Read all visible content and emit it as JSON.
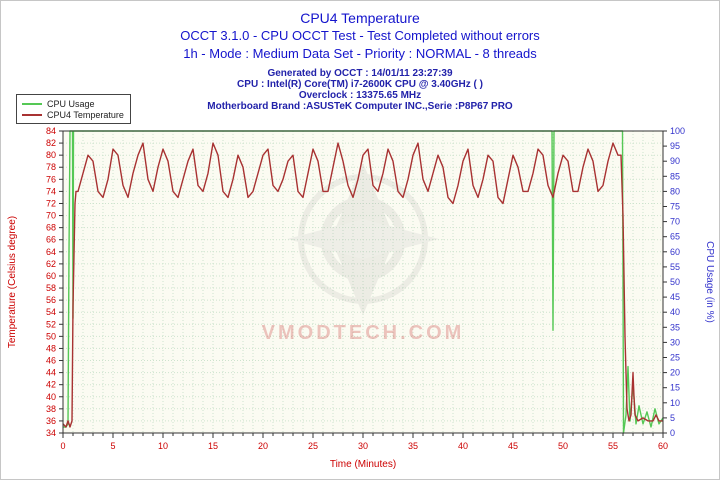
{
  "header": {
    "subtitle1": "OCCT 3.1.0 - CPU OCCT Test - Test Completed without errors",
    "subtitle2": "1h - Mode : Medium Data Set - Priority : NORMAL - 8 threads",
    "info": [
      "Generated by OCCT : 14/01/11 23:27:39",
      "CPU : Intel(R) Core(TM) i7-2600K CPU @ 3.40GHz (  )",
      "Overclock : 13375.65 MHz",
      "Motherboard Brand :ASUSTeK Computer INC.,Serie :P8P67 PRO"
    ]
  },
  "chart_data": {
    "type": "line",
    "title": "CPU4 Temperature",
    "xlabel": "Time (Minutes)",
    "ylabel_left": "Temperature (Celsius degree)",
    "ylabel_right": "CPU Usage (in %)",
    "x_range": [
      0,
      60
    ],
    "x_ticks": [
      0,
      5,
      10,
      15,
      20,
      25,
      30,
      35,
      40,
      45,
      50,
      55,
      60
    ],
    "y_left_range": [
      34,
      84
    ],
    "y_left_ticks": [
      34,
      36,
      38,
      40,
      42,
      44,
      46,
      48,
      50,
      52,
      54,
      56,
      58,
      60,
      62,
      64,
      66,
      68,
      70,
      72,
      74,
      76,
      78,
      80,
      82,
      84
    ],
    "y_right_range": [
      0,
      100
    ],
    "y_right_ticks": [
      0,
      5,
      10,
      15,
      20,
      25,
      30,
      35,
      40,
      45,
      50,
      55,
      60,
      65,
      70,
      75,
      80,
      85,
      90,
      95,
      100
    ],
    "grid": true,
    "legend_position": "top-left",
    "watermark": "VMODTECH.COM",
    "colors": {
      "title": "#1414cc",
      "info": "#2222aa",
      "left_axis": "#cc0000",
      "right_axis": "#3333cc",
      "grid": "#cde3cd",
      "plot_bg": "#fbfbf2",
      "watermark_text": "#cc4444"
    },
    "series": [
      {
        "name": "CPU Usage",
        "axis": "right",
        "color": "#55c855",
        "points": [
          [
            0,
            2
          ],
          [
            0.3,
            2
          ],
          [
            0.5,
            3
          ],
          [
            0.6,
            60
          ],
          [
            0.7,
            100
          ],
          [
            0.95,
            100
          ],
          [
            1,
            38
          ],
          [
            1.05,
            100
          ],
          [
            5,
            100
          ],
          [
            10,
            100
          ],
          [
            15,
            100
          ],
          [
            20,
            100
          ],
          [
            25,
            100
          ],
          [
            30,
            100
          ],
          [
            35,
            100
          ],
          [
            40,
            100
          ],
          [
            45,
            100
          ],
          [
            48.9,
            100
          ],
          [
            49,
            34
          ],
          [
            49.1,
            100
          ],
          [
            52,
            100
          ],
          [
            55.95,
            100
          ],
          [
            56.05,
            0
          ],
          [
            56.3,
            6
          ],
          [
            56.5,
            22
          ],
          [
            56.7,
            4
          ],
          [
            57,
            16
          ],
          [
            57.3,
            3
          ],
          [
            57.6,
            9
          ],
          [
            58,
            3
          ],
          [
            58.4,
            7
          ],
          [
            58.8,
            2
          ],
          [
            59.2,
            8
          ],
          [
            59.6,
            3
          ],
          [
            60,
            5
          ]
        ]
      },
      {
        "name": "CPU4 Temperature",
        "axis": "left",
        "color": "#a83232",
        "points": [
          [
            0,
            35.5
          ],
          [
            0.3,
            35
          ],
          [
            0.5,
            36
          ],
          [
            0.7,
            35
          ],
          [
            0.9,
            36
          ],
          [
            1,
            55
          ],
          [
            1.2,
            72
          ],
          [
            1.3,
            74
          ],
          [
            1.5,
            74
          ],
          [
            2,
            77
          ],
          [
            2.5,
            80
          ],
          [
            3,
            79
          ],
          [
            3.5,
            74
          ],
          [
            4,
            73
          ],
          [
            4.5,
            76
          ],
          [
            5,
            81
          ],
          [
            5.5,
            80
          ],
          [
            6,
            75
          ],
          [
            6.5,
            73
          ],
          [
            7,
            77
          ],
          [
            7.5,
            80
          ],
          [
            8,
            82
          ],
          [
            8.5,
            76
          ],
          [
            9,
            74
          ],
          [
            9.5,
            78
          ],
          [
            10,
            81
          ],
          [
            10.5,
            79
          ],
          [
            11,
            74
          ],
          [
            11.5,
            73
          ],
          [
            12,
            76
          ],
          [
            12.5,
            79
          ],
          [
            13,
            81
          ],
          [
            13.5,
            75
          ],
          [
            14,
            74
          ],
          [
            14.5,
            77
          ],
          [
            15,
            82
          ],
          [
            15.5,
            80
          ],
          [
            16,
            74
          ],
          [
            16.5,
            73
          ],
          [
            17,
            76
          ],
          [
            17.5,
            80
          ],
          [
            18,
            78
          ],
          [
            18.5,
            73
          ],
          [
            19,
            74
          ],
          [
            19.5,
            77
          ],
          [
            20,
            80
          ],
          [
            20.5,
            81
          ],
          [
            21,
            75
          ],
          [
            21.5,
            74
          ],
          [
            22,
            76
          ],
          [
            22.5,
            79
          ],
          [
            23,
            80
          ],
          [
            23.5,
            74
          ],
          [
            24,
            73
          ],
          [
            24.5,
            77
          ],
          [
            25,
            81
          ],
          [
            25.5,
            79
          ],
          [
            26,
            74
          ],
          [
            26.5,
            74
          ],
          [
            27,
            78
          ],
          [
            27.5,
            82
          ],
          [
            28,
            79
          ],
          [
            28.5,
            75
          ],
          [
            29,
            73
          ],
          [
            29.5,
            76
          ],
          [
            30,
            80
          ],
          [
            30.5,
            81
          ],
          [
            31,
            75
          ],
          [
            31.5,
            74
          ],
          [
            32,
            77
          ],
          [
            32.5,
            81
          ],
          [
            33,
            79
          ],
          [
            33.5,
            74
          ],
          [
            34,
            73
          ],
          [
            34.5,
            76
          ],
          [
            35,
            80
          ],
          [
            35.5,
            82
          ],
          [
            36,
            76
          ],
          [
            36.5,
            74
          ],
          [
            37,
            77
          ],
          [
            37.5,
            80
          ],
          [
            38,
            78
          ],
          [
            38.5,
            73
          ],
          [
            39,
            72
          ],
          [
            39.5,
            75
          ],
          [
            40,
            79
          ],
          [
            40.5,
            81
          ],
          [
            41,
            75
          ],
          [
            41.5,
            73
          ],
          [
            42,
            76
          ],
          [
            42.5,
            80
          ],
          [
            43,
            79
          ],
          [
            43.5,
            73
          ],
          [
            44,
            72
          ],
          [
            44.5,
            76
          ],
          [
            45,
            80
          ],
          [
            45.5,
            78
          ],
          [
            46,
            74
          ],
          [
            46.5,
            74
          ],
          [
            47,
            77
          ],
          [
            47.5,
            81
          ],
          [
            48,
            80
          ],
          [
            48.5,
            75
          ],
          [
            49,
            73
          ],
          [
            49.5,
            77
          ],
          [
            50,
            80
          ],
          [
            50.5,
            79
          ],
          [
            51,
            74
          ],
          [
            51.5,
            74
          ],
          [
            52,
            78
          ],
          [
            52.5,
            81
          ],
          [
            53,
            79
          ],
          [
            53.5,
            74
          ],
          [
            54,
            75
          ],
          [
            54.5,
            79
          ],
          [
            55,
            82
          ],
          [
            55.5,
            80
          ],
          [
            55.8,
            80
          ],
          [
            56,
            70
          ],
          [
            56.2,
            50
          ],
          [
            56.4,
            38
          ],
          [
            56.6,
            36
          ],
          [
            56.8,
            37
          ],
          [
            57,
            44
          ],
          [
            57.1,
            40
          ],
          [
            57.2,
            37
          ],
          [
            57.5,
            36
          ],
          [
            58,
            36.5
          ],
          [
            58.5,
            36
          ],
          [
            59,
            36
          ],
          [
            59.3,
            37
          ],
          [
            59.6,
            36
          ],
          [
            60,
            36
          ]
        ]
      }
    ]
  }
}
